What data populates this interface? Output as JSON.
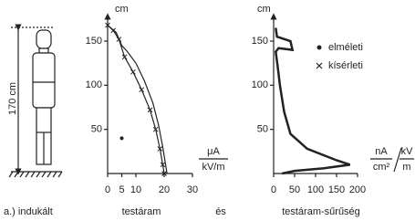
{
  "figure": {
    "label": "a.) indukált",
    "conjunction": "és",
    "height_label": "170 cm"
  },
  "chart_data": [
    {
      "type": "line",
      "y_axis_label": "cm",
      "x_unit": {
        "numerator": "μA",
        "denominator": "kV/m"
      },
      "caption": "testáram",
      "xlim": [
        0,
        30
      ],
      "xticks": [
        0,
        5,
        10,
        20,
        30
      ],
      "ylim": [
        0,
        175
      ],
      "yticks": [
        50,
        100,
        150
      ],
      "series": [
        {
          "name": "elméleti",
          "color": "#222222",
          "marker": "dot",
          "x": [
            0,
            3,
            5,
            7,
            10,
            13,
            16,
            18,
            19.5,
            20.5,
            21
          ],
          "values": [
            168,
            160,
            145,
            138,
            125,
            105,
            80,
            55,
            30,
            10,
            0
          ]
        },
        {
          "name": "kísérleti",
          "color": "#222222",
          "marker": "cross",
          "x": [
            0,
            2,
            4,
            6,
            9,
            12,
            15,
            17,
            18.5,
            19.5,
            20
          ],
          "values": [
            168,
            162,
            152,
            132,
            115,
            95,
            72,
            50,
            28,
            10,
            0
          ]
        }
      ],
      "extra_point": {
        "x": 5,
        "y": 40
      }
    },
    {
      "type": "line",
      "y_axis_label": "cm",
      "x_unit": {
        "left_num": "nA",
        "left_den": "cm²",
        "right_num": "kV",
        "right_den": "m"
      },
      "caption": "testáram-sűrűség",
      "xlim": [
        0,
        200
      ],
      "xticks": [
        0,
        50,
        100,
        150,
        200
      ],
      "ylim": [
        0,
        175
      ],
      "yticks": [
        50,
        100,
        150
      ],
      "color": "#222222",
      "x": [
        5,
        8,
        40,
        45,
        12,
        5,
        10,
        15,
        25,
        40,
        80,
        150,
        182,
        120,
        50,
        20
      ],
      "values": [
        165,
        155,
        150,
        140,
        142,
        138,
        120,
        100,
        70,
        45,
        28,
        15,
        10,
        6,
        3,
        0
      ]
    }
  ]
}
